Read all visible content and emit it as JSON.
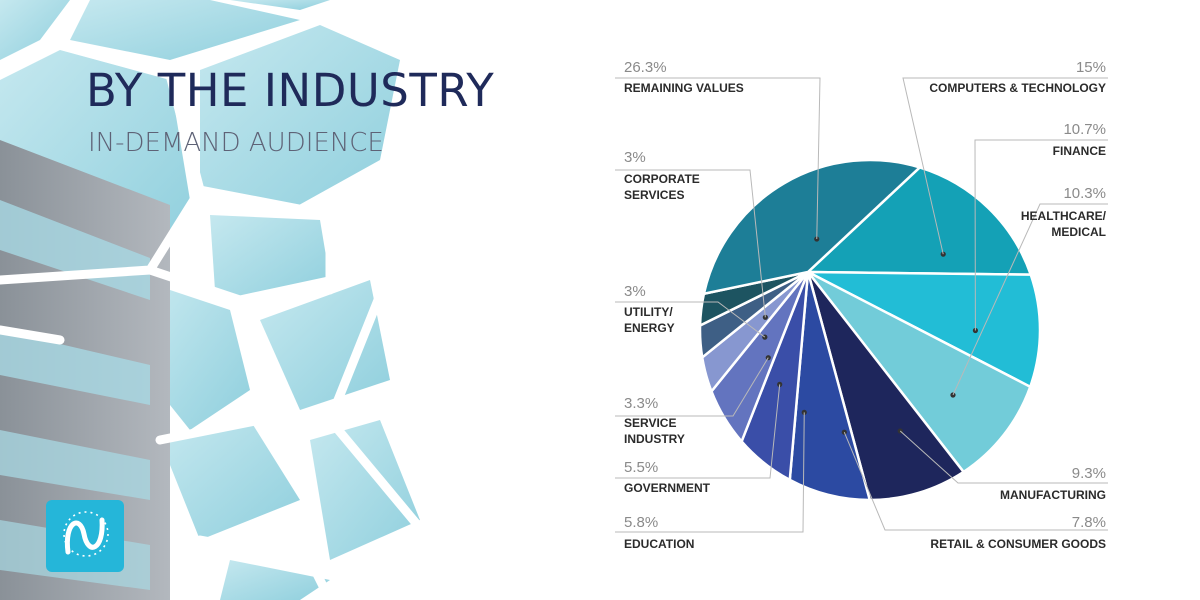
{
  "header": {
    "title": "BY THE INDUSTRY",
    "subtitle": "IN-DEMAND AUDIENCE"
  },
  "colors": {
    "title": "#1f2a5a",
    "subtitle": "#5e6276",
    "logo_bg": "#25b6d9",
    "sky": "#a9dbe4"
  },
  "chart_data": {
    "type": "pie",
    "title": "",
    "unit": "%",
    "slices": [
      {
        "name": "COMPUTERS & TECHNOLOGY",
        "lines": [
          "COMPUTERS & TECHNOLOGY"
        ],
        "value": 15,
        "label": "15%",
        "color": "#14a1b6"
      },
      {
        "name": "FINANCE",
        "lines": [
          "FINANCE"
        ],
        "value": 10.7,
        "label": "10.7%",
        "color": "#22bdd6"
      },
      {
        "name": "HEALTHCARE/ MEDICAL",
        "lines": [
          "HEALTHCARE/",
          "MEDICAL"
        ],
        "value": 10.3,
        "label": "10.3%",
        "color": "#72ccd9"
      },
      {
        "name": "MANUFACTURING",
        "lines": [
          "MANUFACTURING"
        ],
        "value": 9.3,
        "label": "9.3%",
        "color": "#1e265c"
      },
      {
        "name": "RETAIL & CONSUMER GOODS",
        "lines": [
          "RETAIL & CONSUMER GOODS"
        ],
        "value": 7.8,
        "label": "7.8%",
        "color": "#2c4aa2"
      },
      {
        "name": "EDUCATION",
        "lines": [
          "EDUCATION"
        ],
        "value": 5.8,
        "label": "5.8%",
        "color": "#3a4ea8"
      },
      {
        "name": "GOVERNMENT",
        "lines": [
          "GOVERNMENT"
        ],
        "value": 5.5,
        "label": "5.5%",
        "color": "#6374bf"
      },
      {
        "name": "SERVICE INDUSTRY",
        "lines": [
          "SERVICE",
          "INDUSTRY"
        ],
        "value": 3.3,
        "label": "3.3%",
        "color": "#8797d0"
      },
      {
        "name": "UTILITY/ ENERGY",
        "lines": [
          "UTILITY/",
          "ENERGY"
        ],
        "value": 3,
        "label": "3%",
        "color": "#3e5f85"
      },
      {
        "name": "CORPORATE SERVICES",
        "lines": [
          "CORPORATE",
          "SERVICES"
        ],
        "value": 3,
        "label": "3%",
        "color": "#1d5461"
      },
      {
        "name": "REMAINING VALUES",
        "lines": [
          "REMAINING VALUES"
        ],
        "value": 26.3,
        "label": "26.3%",
        "color": "#1d7e97"
      }
    ]
  }
}
